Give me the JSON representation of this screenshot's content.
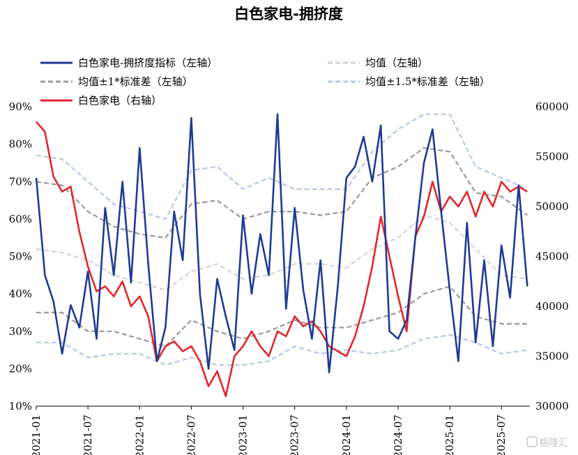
{
  "chart_data": {
    "type": "line",
    "title": "白色家电-拥挤度",
    "x_ticks": [
      "2021-01",
      "2021-07",
      "2022-01",
      "2022-07",
      "2023-01",
      "2023-07",
      "2024-01",
      "2024-07",
      "2025-01",
      "2025-07"
    ],
    "left_axis": {
      "ylim": [
        0.1,
        0.9
      ],
      "ticks": [
        "10%",
        "20%",
        "30%",
        "40%",
        "50%",
        "60%",
        "70%",
        "80%",
        "90%"
      ]
    },
    "right_axis": {
      "ylim": [
        30000,
        60000
      ],
      "ticks": [
        "30000",
        "35000",
        "40000",
        "45000",
        "50000",
        "55000",
        "60000"
      ]
    },
    "legend": [
      {
        "label": "白色家电-拥挤度指标（左轴）",
        "series": "crowding"
      },
      {
        "label": "均值（左轴）",
        "series": "mean"
      },
      {
        "label": "均值±1*标准差（左轴）",
        "series": "sd1"
      },
      {
        "label": "均值±1.5*标准差（左轴）",
        "series": "sd15"
      },
      {
        "label": "白色家电（右轴）",
        "series": "index"
      }
    ],
    "colors": {
      "crowding": "#1f3a93",
      "mean": "#d3d3d3",
      "sd1": "#999999",
      "sd15": "#b4c7e7",
      "index": "#e2262b"
    },
    "series": [
      {
        "key": "crowding",
        "axis": "left",
        "x": [
          "2021-01",
          "2021-02",
          "2021-03",
          "2021-04",
          "2021-05",
          "2021-06",
          "2021-07",
          "2021-08",
          "2021-09",
          "2021-10",
          "2021-11",
          "2021-12",
          "2022-01",
          "2022-02",
          "2022-03",
          "2022-04",
          "2022-05",
          "2022-06",
          "2022-07",
          "2022-08",
          "2022-09",
          "2022-10",
          "2022-11",
          "2022-12",
          "2023-01",
          "2023-02",
          "2023-03",
          "2023-04",
          "2023-05",
          "2023-06",
          "2023-07",
          "2023-08",
          "2023-09",
          "2023-10",
          "2023-11",
          "2023-12",
          "2024-01",
          "2024-02",
          "2024-03",
          "2024-04",
          "2024-05",
          "2024-06",
          "2024-07",
          "2024-08",
          "2024-09",
          "2024-10",
          "2024-11",
          "2024-12",
          "2025-01",
          "2025-02",
          "2025-03",
          "2025-04",
          "2025-05",
          "2025-06",
          "2025-07",
          "2025-08",
          "2025-09",
          "2025-10"
        ],
        "values": [
          0.71,
          0.45,
          0.38,
          0.24,
          0.37,
          0.31,
          0.46,
          0.28,
          0.63,
          0.45,
          0.7,
          0.43,
          0.79,
          0.48,
          0.22,
          0.31,
          0.62,
          0.49,
          0.87,
          0.4,
          0.2,
          0.44,
          0.34,
          0.25,
          0.61,
          0.4,
          0.56,
          0.45,
          0.88,
          0.36,
          0.63,
          0.41,
          0.28,
          0.49,
          0.19,
          0.42,
          0.71,
          0.74,
          0.82,
          0.7,
          0.85,
          0.3,
          0.28,
          0.33,
          0.55,
          0.75,
          0.84,
          0.62,
          0.41,
          0.22,
          0.59,
          0.27,
          0.49,
          0.26,
          0.53,
          0.39,
          0.69,
          0.42
        ]
      },
      {
        "key": "mean",
        "axis": "left",
        "x": [
          "2021-01",
          "2021-04",
          "2021-07",
          "2021-10",
          "2022-01",
          "2022-04",
          "2022-07",
          "2022-10",
          "2023-01",
          "2023-04",
          "2023-07",
          "2023-10",
          "2024-01",
          "2024-04",
          "2024-07",
          "2024-10",
          "2025-01",
          "2025-04",
          "2025-07",
          "2025-10"
        ],
        "values": [
          0.52,
          0.51,
          0.49,
          0.45,
          0.43,
          0.41,
          0.46,
          0.48,
          0.44,
          0.45,
          0.48,
          0.48,
          0.47,
          0.52,
          0.55,
          0.61,
          0.59,
          0.52,
          0.45,
          0.44
        ]
      },
      {
        "key": "sd1_upper",
        "axis": "left",
        "x": [
          "2021-01",
          "2021-04",
          "2021-07",
          "2021-10",
          "2022-01",
          "2022-04",
          "2022-07",
          "2022-10",
          "2023-01",
          "2023-04",
          "2023-07",
          "2023-10",
          "2024-01",
          "2024-04",
          "2024-07",
          "2024-10",
          "2025-01",
          "2025-04",
          "2025-07",
          "2025-10"
        ],
        "values": [
          0.7,
          0.69,
          0.62,
          0.58,
          0.56,
          0.55,
          0.64,
          0.65,
          0.6,
          0.62,
          0.62,
          0.61,
          0.62,
          0.71,
          0.74,
          0.79,
          0.78,
          0.67,
          0.66,
          0.61
        ]
      },
      {
        "key": "sd1_lower",
        "axis": "left",
        "x": [
          "2021-01",
          "2021-04",
          "2021-07",
          "2021-10",
          "2022-01",
          "2022-04",
          "2022-07",
          "2022-10",
          "2023-01",
          "2023-04",
          "2023-07",
          "2023-10",
          "2024-01",
          "2024-04",
          "2024-07",
          "2024-10",
          "2025-01",
          "2025-04",
          "2025-07",
          "2025-10"
        ],
        "values": [
          0.35,
          0.35,
          0.3,
          0.3,
          0.28,
          0.26,
          0.33,
          0.3,
          0.28,
          0.3,
          0.33,
          0.31,
          0.31,
          0.33,
          0.35,
          0.4,
          0.42,
          0.34,
          0.32,
          0.32
        ]
      },
      {
        "key": "sd15_upper",
        "axis": "left",
        "x": [
          "2021-01",
          "2021-04",
          "2021-07",
          "2021-10",
          "2022-01",
          "2022-04",
          "2022-07",
          "2022-10",
          "2023-01",
          "2023-04",
          "2023-07",
          "2023-10",
          "2024-01",
          "2024-04",
          "2024-07",
          "2024-10",
          "2025-01",
          "2025-04",
          "2025-07",
          "2025-10"
        ],
        "values": [
          0.77,
          0.76,
          0.7,
          0.64,
          0.62,
          0.6,
          0.73,
          0.74,
          0.68,
          0.71,
          0.68,
          0.68,
          0.68,
          0.78,
          0.84,
          0.88,
          0.88,
          0.74,
          0.71,
          0.68
        ]
      },
      {
        "key": "sd15_lower",
        "axis": "left",
        "x": [
          "2021-01",
          "2021-04",
          "2021-07",
          "2021-10",
          "2022-01",
          "2022-04",
          "2022-07",
          "2022-10",
          "2023-01",
          "2023-04",
          "2023-07",
          "2023-10",
          "2024-01",
          "2024-04",
          "2024-07",
          "2024-10",
          "2025-01",
          "2025-04",
          "2025-07",
          "2025-10"
        ],
        "values": [
          0.27,
          0.27,
          0.23,
          0.24,
          0.24,
          0.21,
          0.23,
          0.21,
          0.21,
          0.22,
          0.26,
          0.24,
          0.25,
          0.24,
          0.25,
          0.28,
          0.29,
          0.27,
          0.24,
          0.25
        ]
      },
      {
        "key": "index",
        "axis": "right",
        "x": [
          "2021-01",
          "2021-02",
          "2021-03",
          "2021-04",
          "2021-05",
          "2021-06",
          "2021-07",
          "2021-08",
          "2021-09",
          "2021-10",
          "2021-11",
          "2021-12",
          "2022-01",
          "2022-02",
          "2022-03",
          "2022-04",
          "2022-05",
          "2022-06",
          "2022-07",
          "2022-08",
          "2022-09",
          "2022-10",
          "2022-11",
          "2022-12",
          "2023-01",
          "2023-02",
          "2023-03",
          "2023-04",
          "2023-05",
          "2023-06",
          "2023-07",
          "2023-08",
          "2023-09",
          "2023-10",
          "2023-11",
          "2023-12",
          "2024-01",
          "2024-02",
          "2024-03",
          "2024-04",
          "2024-05",
          "2024-06",
          "2024-07",
          "2024-08",
          "2024-09",
          "2024-10",
          "2024-11",
          "2024-12",
          "2025-01",
          "2025-02",
          "2025-03",
          "2025-04",
          "2025-05",
          "2025-06",
          "2025-07",
          "2025-08",
          "2025-09",
          "2025-10"
        ],
        "values": [
          58500,
          57500,
          53000,
          51500,
          52000,
          47500,
          44000,
          41500,
          42000,
          41000,
          42500,
          40000,
          41000,
          39000,
          34500,
          36000,
          36500,
          35500,
          36000,
          34500,
          32000,
          33500,
          31000,
          35000,
          36000,
          37500,
          36000,
          35000,
          37500,
          37000,
          39000,
          38000,
          38500,
          37500,
          36000,
          35500,
          35000,
          37000,
          40000,
          44000,
          49000,
          45000,
          41000,
          37500,
          47000,
          49000,
          52500,
          49500,
          51000,
          50000,
          51500,
          49000,
          51500,
          50000,
          52500,
          51500,
          52000,
          51500
        ]
      }
    ]
  }
}
